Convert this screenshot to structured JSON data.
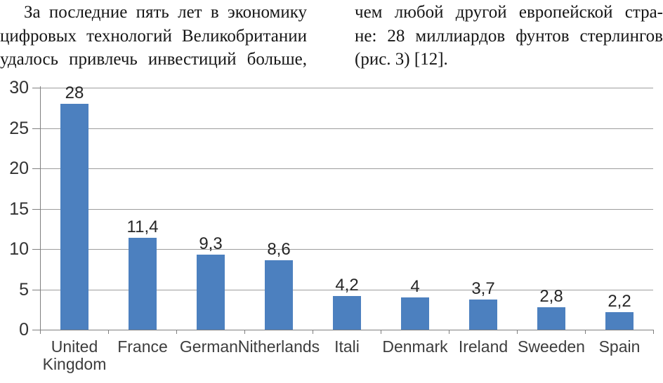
{
  "paragraph": {
    "columns": [
      {
        "lines": [
          "За последние пять лет в экономику",
          "цифровых технологий Великобритании",
          "удалось привлечь инвестиций больше,"
        ]
      },
      {
        "lines": [
          "чем любой другой европейской стра-",
          "не: 28 миллиардов фунтов стерлингов",
          "(рис. 3) [12]."
        ]
      }
    ]
  },
  "chart_data": {
    "type": "bar",
    "title": "",
    "xlabel": "",
    "ylabel": "",
    "categories": [
      "United\nKingdom",
      "France",
      "Germani",
      "Nitherlands",
      "Itali",
      "Denmark",
      "Ireland",
      "Sweeden",
      "Spain"
    ],
    "values": [
      28,
      11.4,
      9.3,
      8.6,
      4.2,
      4,
      3.7,
      2.8,
      2.2
    ],
    "value_labels": [
      "28",
      "11,4",
      "9,3",
      "8,6",
      "4,2",
      "4",
      "3,7",
      "2,8",
      "2,2"
    ],
    "ylim": [
      0,
      30
    ],
    "yticks": [
      0,
      5,
      10,
      15,
      20,
      25,
      30
    ],
    "grid": true,
    "legend": "none",
    "colors": {
      "bar": "#4C80BF",
      "gridline": "#9d9d9d",
      "axis": "#7f7f7f",
      "tick_label": "#333333",
      "category_label": "#3d3d3d",
      "value_label": "#262626"
    }
  }
}
